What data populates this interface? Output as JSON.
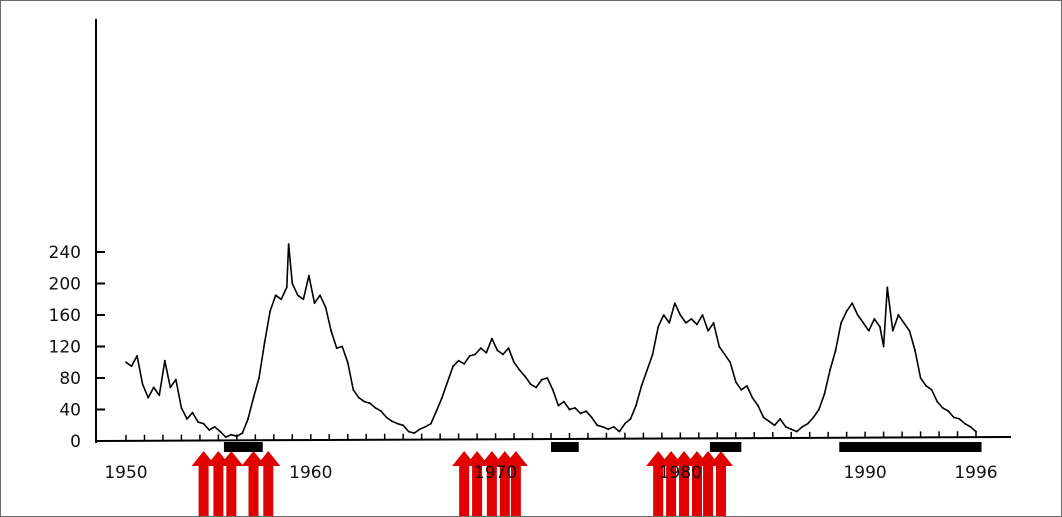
{
  "chart_data": {
    "type": "line",
    "title": "",
    "xlabel": "",
    "ylabel": "",
    "xlim": [
      1950,
      1996
    ],
    "ylim": [
      0,
      260
    ],
    "grid": false,
    "y_ticks": [
      0,
      40,
      80,
      120,
      160,
      200,
      240
    ],
    "x_tick_labels": [
      {
        "value": 1950,
        "label": "1950"
      },
      {
        "value": 1960,
        "label": "1960"
      },
      {
        "value": 1970,
        "label": "1970"
      },
      {
        "value": 1980,
        "label": "1980"
      },
      {
        "value": 1990,
        "label": "1990"
      },
      {
        "value": 1996,
        "label": "1996"
      }
    ],
    "series": [
      {
        "color": "#000000",
        "points": [
          [
            1950.0,
            100
          ],
          [
            1950.3,
            95
          ],
          [
            1950.6,
            108
          ],
          [
            1950.9,
            72
          ],
          [
            1951.2,
            55
          ],
          [
            1951.5,
            68
          ],
          [
            1951.8,
            58
          ],
          [
            1952.1,
            102
          ],
          [
            1952.4,
            68
          ],
          [
            1952.7,
            78
          ],
          [
            1953.0,
            42
          ],
          [
            1953.3,
            28
          ],
          [
            1953.6,
            36
          ],
          [
            1953.9,
            24
          ],
          [
            1954.2,
            22
          ],
          [
            1954.5,
            14
          ],
          [
            1954.8,
            18
          ],
          [
            1955.1,
            12
          ],
          [
            1955.4,
            5
          ],
          [
            1955.7,
            8
          ],
          [
            1956.0,
            6
          ],
          [
            1956.3,
            10
          ],
          [
            1956.6,
            28
          ],
          [
            1956.9,
            55
          ],
          [
            1957.2,
            80
          ],
          [
            1957.5,
            125
          ],
          [
            1957.8,
            165
          ],
          [
            1958.1,
            185
          ],
          [
            1958.4,
            180
          ],
          [
            1958.7,
            195
          ],
          [
            1958.8,
            250
          ],
          [
            1959.0,
            200
          ],
          [
            1959.3,
            185
          ],
          [
            1959.6,
            180
          ],
          [
            1959.9,
            210
          ],
          [
            1960.2,
            175
          ],
          [
            1960.5,
            185
          ],
          [
            1960.8,
            170
          ],
          [
            1961.1,
            140
          ],
          [
            1961.4,
            118
          ],
          [
            1961.7,
            120
          ],
          [
            1962.0,
            100
          ],
          [
            1962.3,
            65
          ],
          [
            1962.6,
            55
          ],
          [
            1962.9,
            50
          ],
          [
            1963.2,
            48
          ],
          [
            1963.5,
            42
          ],
          [
            1963.8,
            38
          ],
          [
            1964.1,
            30
          ],
          [
            1964.4,
            25
          ],
          [
            1964.7,
            22
          ],
          [
            1965.0,
            20
          ],
          [
            1965.3,
            12
          ],
          [
            1965.6,
            10
          ],
          [
            1965.9,
            15
          ],
          [
            1966.2,
            18
          ],
          [
            1966.5,
            22
          ],
          [
            1966.8,
            38
          ],
          [
            1967.1,
            55
          ],
          [
            1967.4,
            75
          ],
          [
            1967.7,
            95
          ],
          [
            1968.0,
            102
          ],
          [
            1968.3,
            98
          ],
          [
            1968.6,
            108
          ],
          [
            1968.9,
            110
          ],
          [
            1969.2,
            118
          ],
          [
            1969.5,
            112
          ],
          [
            1969.8,
            130
          ],
          [
            1970.1,
            115
          ],
          [
            1970.4,
            110
          ],
          [
            1970.7,
            118
          ],
          [
            1971.0,
            100
          ],
          [
            1971.3,
            90
          ],
          [
            1971.6,
            82
          ],
          [
            1971.9,
            72
          ],
          [
            1972.2,
            68
          ],
          [
            1972.5,
            78
          ],
          [
            1972.8,
            80
          ],
          [
            1973.1,
            65
          ],
          [
            1973.4,
            45
          ],
          [
            1973.7,
            50
          ],
          [
            1974.0,
            40
          ],
          [
            1974.3,
            42
          ],
          [
            1974.6,
            35
          ],
          [
            1974.9,
            38
          ],
          [
            1975.2,
            30
          ],
          [
            1975.5,
            20
          ],
          [
            1975.8,
            18
          ],
          [
            1976.1,
            15
          ],
          [
            1976.4,
            18
          ],
          [
            1976.7,
            12
          ],
          [
            1977.0,
            22
          ],
          [
            1977.3,
            28
          ],
          [
            1977.6,
            45
          ],
          [
            1977.9,
            70
          ],
          [
            1978.2,
            90
          ],
          [
            1978.5,
            110
          ],
          [
            1978.8,
            145
          ],
          [
            1979.1,
            160
          ],
          [
            1979.4,
            150
          ],
          [
            1979.7,
            175
          ],
          [
            1980.0,
            160
          ],
          [
            1980.3,
            150
          ],
          [
            1980.6,
            155
          ],
          [
            1980.9,
            148
          ],
          [
            1981.2,
            160
          ],
          [
            1981.5,
            140
          ],
          [
            1981.8,
            150
          ],
          [
            1982.1,
            120
          ],
          [
            1982.4,
            110
          ],
          [
            1982.7,
            100
          ],
          [
            1983.0,
            75
          ],
          [
            1983.3,
            65
          ],
          [
            1983.6,
            70
          ],
          [
            1983.9,
            55
          ],
          [
            1984.2,
            45
          ],
          [
            1984.5,
            30
          ],
          [
            1984.8,
            25
          ],
          [
            1985.1,
            20
          ],
          [
            1985.4,
            28
          ],
          [
            1985.7,
            18
          ],
          [
            1986.0,
            15
          ],
          [
            1986.3,
            12
          ],
          [
            1986.6,
            18
          ],
          [
            1986.9,
            22
          ],
          [
            1987.2,
            30
          ],
          [
            1987.5,
            40
          ],
          [
            1987.8,
            60
          ],
          [
            1988.1,
            90
          ],
          [
            1988.4,
            115
          ],
          [
            1988.7,
            150
          ],
          [
            1989.0,
            165
          ],
          [
            1989.3,
            175
          ],
          [
            1989.6,
            160
          ],
          [
            1989.9,
            150
          ],
          [
            1990.2,
            140
          ],
          [
            1990.5,
            155
          ],
          [
            1990.8,
            145
          ],
          [
            1991.0,
            120
          ],
          [
            1991.2,
            195
          ],
          [
            1991.5,
            140
          ],
          [
            1991.8,
            160
          ],
          [
            1992.1,
            150
          ],
          [
            1992.4,
            140
          ],
          [
            1992.7,
            115
          ],
          [
            1993.0,
            80
          ],
          [
            1993.3,
            70
          ],
          [
            1993.6,
            65
          ],
          [
            1993.9,
            50
          ],
          [
            1994.2,
            42
          ],
          [
            1994.5,
            38
          ],
          [
            1994.8,
            30
          ],
          [
            1995.1,
            28
          ],
          [
            1995.4,
            22
          ],
          [
            1995.7,
            18
          ],
          [
            1996.0,
            12
          ]
        ]
      }
    ],
    "dark_bars": [
      {
        "start": 1955.3,
        "end": 1957.4
      },
      {
        "start": 1973.0,
        "end": 1974.5
      },
      {
        "start": 1981.6,
        "end": 1983.3
      },
      {
        "start": 1988.6,
        "end": 1996.3
      }
    ],
    "red_arrows_at": [
      1954.2,
      1955.0,
      1955.7,
      1956.9,
      1957.7,
      1968.3,
      1969.0,
      1969.8,
      1970.5,
      1971.1,
      1978.8,
      1979.5,
      1980.2,
      1980.9,
      1981.5,
      1982.2
    ],
    "colors": {
      "line": "#000000",
      "axis": "#000000",
      "arrow": "#e00000",
      "bar": "#000000"
    }
  }
}
